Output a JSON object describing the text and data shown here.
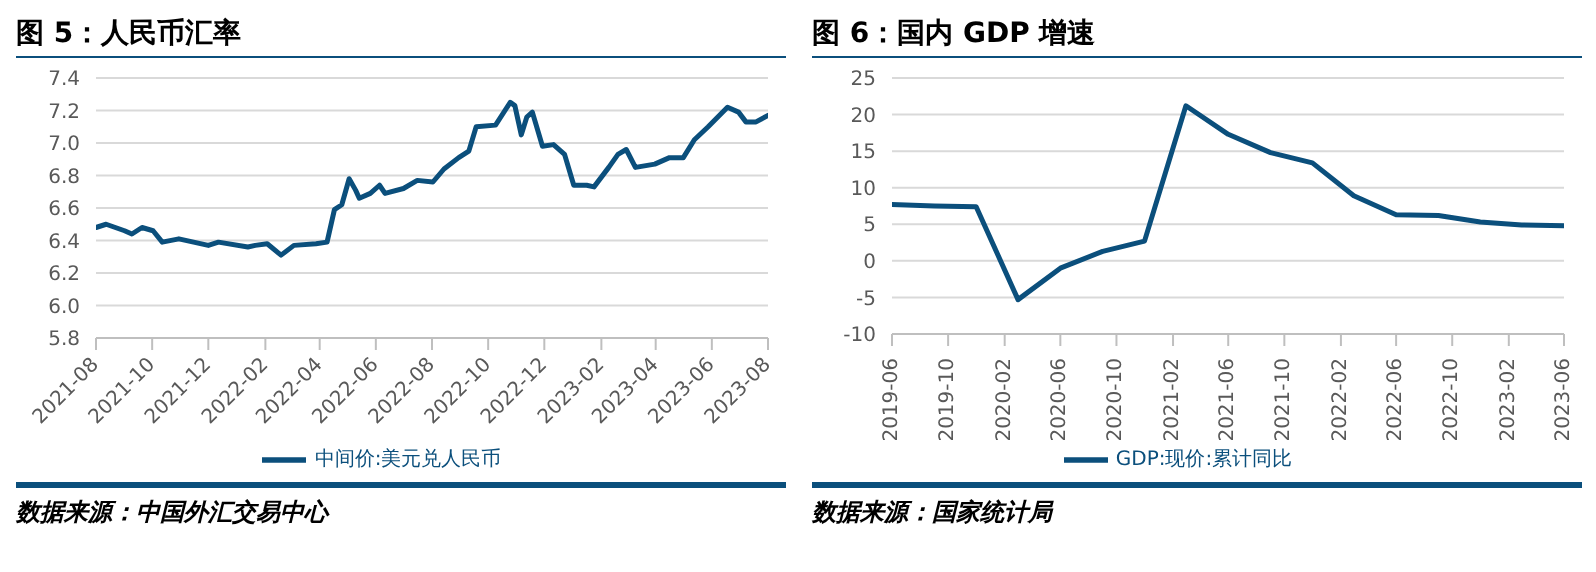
{
  "chart_data": [
    {
      "type": "line",
      "title": "图 5：人民币汇率",
      "annotations": [
        "数据来源：中国外汇交易中心"
      ],
      "grid": "y",
      "legend": "bottom",
      "marker": "none",
      "line_style": "solid",
      "xlim": [
        "2021-08-01",
        "2023-08-01"
      ],
      "xticks": [
        "2021-08",
        "2021-10",
        "2021-12",
        "2022-02",
        "2022-04",
        "2022-06",
        "2022-08",
        "2022-10",
        "2022-12",
        "2023-02",
        "2023-04",
        "2023-06",
        "2023-08"
      ],
      "ylim": [
        5.8,
        7.4
      ],
      "yticks": [
        5.8,
        {
          "value": 6,
          "label": "6.0"
        },
        6.2,
        6.4,
        6.6,
        6.8,
        {
          "value": 7,
          "label": "7.0"
        },
        7.2,
        7.4
      ],
      "x": [
        "2021-08-01",
        "2021-08-12",
        "2021-09-01",
        "2021-09-09",
        "2021-09-20",
        "2021-10-02",
        "2021-10-12",
        "2021-10-30",
        "2021-12-01",
        "2021-12-12",
        "2022-01-13",
        "2022-01-21",
        "2022-02-03",
        "2022-02-18",
        "2022-03-04",
        "2022-03-28",
        "2022-04-09",
        "2022-04-17",
        "2022-04-25",
        "2022-05-03",
        "2022-05-10",
        "2022-05-14",
        "2022-05-26",
        "2022-06-05",
        "2022-06-11",
        "2022-07-01",
        "2022-07-16",
        "2022-08-02",
        "2022-08-14",
        "2022-08-30",
        "2022-09-10",
        "2022-09-18",
        "2022-10-09",
        "2022-10-25",
        "2022-10-30",
        "2022-11-06",
        "2022-11-12",
        "2022-11-18",
        "2022-11-29",
        "2022-12-11",
        "2022-12-23",
        "2023-01-02",
        "2023-01-16",
        "2023-01-24",
        "2023-02-09",
        "2023-02-19",
        "2023-02-28",
        "2023-03-10",
        "2023-03-31",
        "2023-04-16",
        "2023-05-01",
        "2023-05-13",
        "2023-05-28",
        "2023-06-18",
        "2023-06-30",
        "2023-07-08",
        "2023-07-19",
        "2023-08-01"
      ],
      "series": [
        {
          "name": "中间价:美元兑人民币",
          "color": "#0b4f7c",
          "values": [
            6.48,
            6.5,
            6.46,
            6.44,
            6.48,
            6.46,
            6.39,
            6.41,
            6.37,
            6.39,
            6.36,
            6.37,
            6.38,
            6.31,
            6.37,
            6.38,
            6.39,
            6.59,
            6.62,
            6.78,
            6.71,
            6.66,
            6.69,
            6.74,
            6.69,
            6.72,
            6.77,
            6.76,
            6.84,
            6.91,
            6.95,
            7.1,
            7.11,
            7.25,
            7.23,
            7.05,
            7.16,
            7.19,
            6.98,
            6.99,
            6.93,
            6.74,
            6.74,
            6.73,
            6.85,
            6.93,
            6.96,
            6.85,
            6.87,
            6.91,
            6.91,
            7.02,
            7.1,
            7.22,
            7.19,
            7.13,
            7.13,
            7.17
          ]
        }
      ]
    },
    {
      "type": "line",
      "title": "图 6：国内 GDP 增速",
      "annotations": [
        "数据来源：国家统计局"
      ],
      "grid": "y",
      "legend": "bottom",
      "marker": "none",
      "line_style": "solid",
      "xlim": [
        "2019-06",
        "2023-06"
      ],
      "xticks": [
        "2019-06",
        "2019-10",
        "2020-02",
        "2020-06",
        "2020-10",
        "2021-02",
        "2021-06",
        "2021-10",
        "2022-02",
        "2022-06",
        "2022-10",
        "2023-02",
        "2023-06"
      ],
      "ylim": [
        -10,
        25
      ],
      "yticks": [
        -10,
        -5,
        0,
        5,
        10,
        15,
        20,
        25
      ],
      "x": [
        "2019-06",
        "2019-09",
        "2019-12",
        "2020-03",
        "2020-06",
        "2020-09",
        "2020-12",
        "2021-03",
        "2021-06",
        "2021-09",
        "2021-12",
        "2022-03",
        "2022-06",
        "2022-09",
        "2022-12",
        "2023-03",
        "2023-06"
      ],
      "series": [
        {
          "name": "GDP:现价:累计同比",
          "color": "#0b4f7c",
          "values": [
            7.7,
            7.5,
            7.4,
            -5.3,
            -1,
            1.3,
            2.7,
            21.2,
            17.3,
            14.8,
            13.4,
            8.9,
            6.3,
            6.2,
            5.3,
            4.9,
            4.8
          ]
        }
      ]
    }
  ]
}
